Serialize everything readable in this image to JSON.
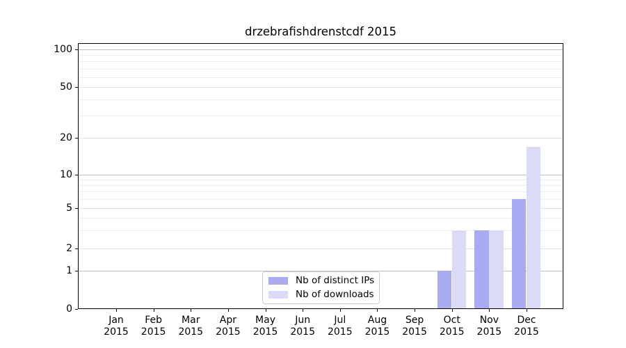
{
  "title": "drzebrafishdrenstcdf 2015",
  "chart_data": {
    "type": "bar",
    "title": "drzebrafishdrenstcdf 2015",
    "categories": [
      "Jan 2015",
      "Feb 2015",
      "Mar 2015",
      "Apr 2015",
      "May 2015",
      "Jun 2015",
      "Jul 2015",
      "Aug 2015",
      "Sep 2015",
      "Oct 2015",
      "Nov 2015",
      "Dec 2015"
    ],
    "series": [
      {
        "name": "Nb of distinct IPs",
        "color": "#aaaaf0",
        "values": [
          0,
          0,
          0,
          0,
          0,
          0,
          0,
          0,
          0,
          1,
          3,
          6
        ]
      },
      {
        "name": "Nb of downloads",
        "color": "#dbdbf8",
        "values": [
          0,
          0,
          0,
          0,
          0,
          0,
          0,
          0,
          0,
          3,
          3,
          17
        ]
      }
    ],
    "yscale": "symlog",
    "ylim": [
      0,
      100
    ],
    "yticks": [
      0,
      1,
      2,
      5,
      10,
      20,
      50,
      100
    ],
    "ytick_labels": [
      "0",
      "1",
      "2",
      "5",
      "10",
      "20",
      "50",
      "100"
    ],
    "minor_grid_values": [
      3,
      4,
      6,
      7,
      8,
      9,
      30,
      40,
      60,
      70,
      80,
      90
    ],
    "labeled_minor_values": [
      2,
      5,
      20,
      50
    ],
    "major_grid_values": [
      1,
      10,
      100
    ],
    "grid": "horizontal",
    "legend_position": "lower center"
  },
  "legend": {
    "items": [
      {
        "label": "Nb of distinct IPs",
        "color": "#aaaaf0"
      },
      {
        "label": "Nb of downloads",
        "color": "#dbdbf8"
      }
    ]
  },
  "colors": {
    "background": "#ffffff",
    "spine": "#000000",
    "grid_major": "#bfbfbf",
    "grid_labeled_minor": "#e0e0e0",
    "grid_minor": "#ededed",
    "legend_border": "#cccccc",
    "bar_distinct_ips": "#aaaaf0",
    "bar_downloads": "#dbdbf8"
  }
}
